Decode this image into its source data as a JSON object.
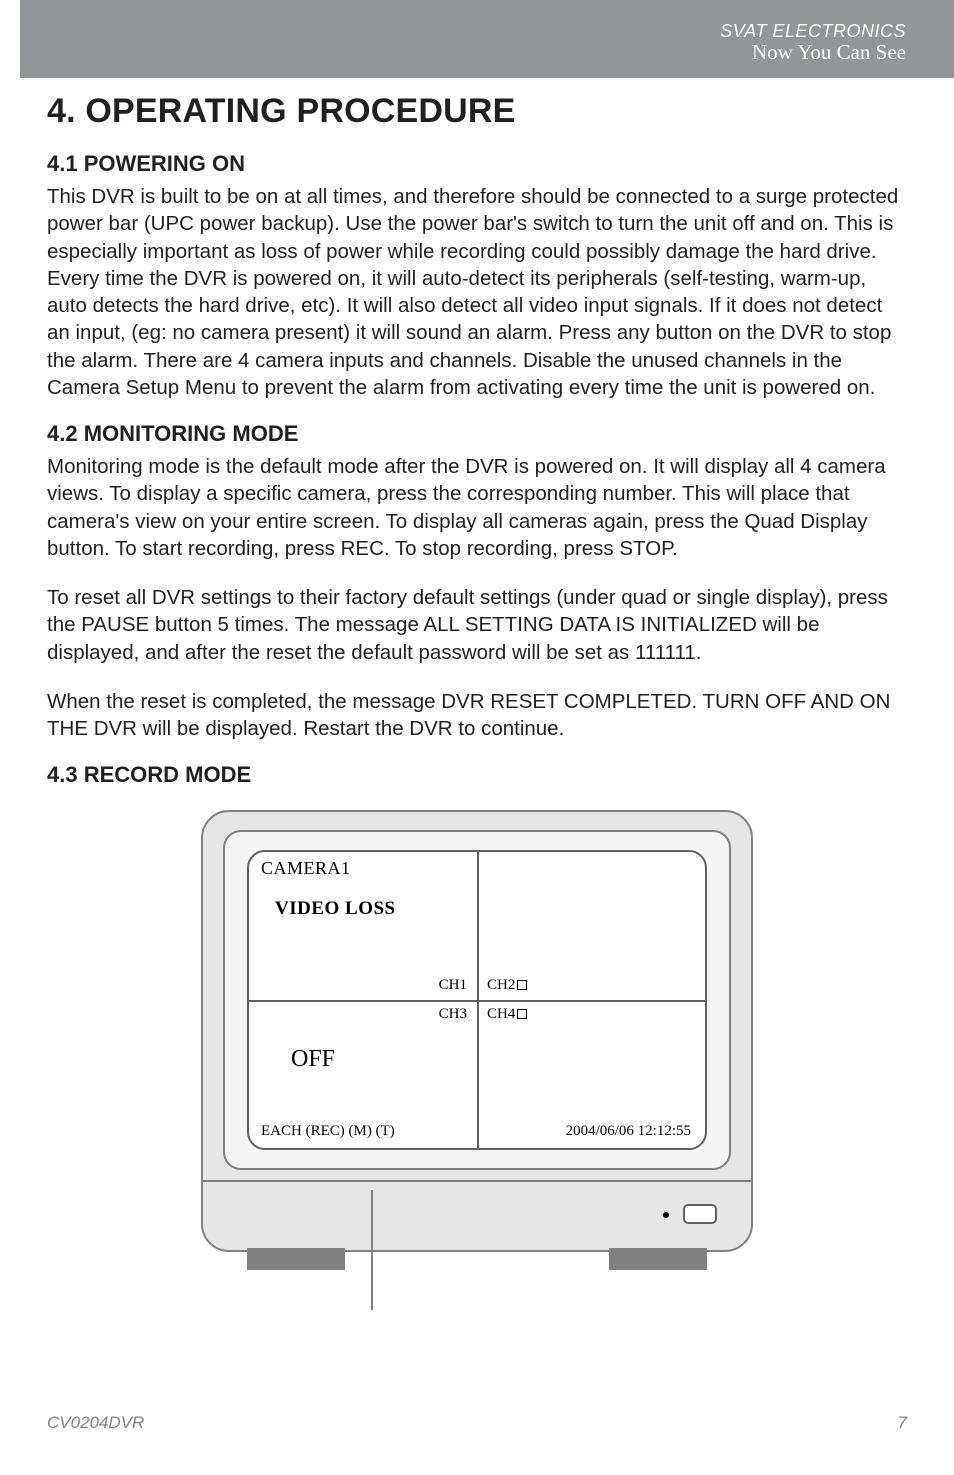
{
  "header": {
    "brand": "SVAT ELECTRONICS",
    "tagline": "Now You Can See"
  },
  "chapter_title": "4. OPERATING PROCEDURE",
  "sections": {
    "s41": {
      "heading": "4.1 POWERING ON",
      "body": "This DVR is built to be on at all times, and therefore should be connected to a surge protected power bar (UPC power backup). Use the power bar's switch to turn the unit off and on. This is especially important as loss of power while recording could possibly damage the hard drive. Every time the DVR is powered on, it will auto-detect its peripherals (self-testing, warm-up, auto detects the hard drive, etc). It will also detect all video input signals. If it does not detect an input, (eg: no camera present) it will sound an alarm. Press any button on the DVR to stop the alarm. There are 4 camera inputs and channels. Disable the unused channels in the Camera Setup Menu to prevent the alarm from activating every time the unit is powered on."
    },
    "s42": {
      "heading": "4.2 MONITORING MODE",
      "body1": "Monitoring mode is the default mode after the DVR is powered on. It will display all 4 camera views. To display a specific camera, press the corresponding number. This will place that camera's view on your entire screen. To display all cameras again, press the Quad Display button. To start recording, press REC. To stop recording, press STOP.",
      "body2": "To reset all DVR settings to their factory default settings (under quad or single display), press the PAUSE  button 5 times. The message ALL SETTING DATA IS INITIALIZED will be displayed, and after the reset the default password will be set as 111111.",
      "body3": "When the reset is completed, the message DVR RESET COMPLETED. TURN OFF AND ON THE DVR will be displayed. Restart the DVR to continue."
    },
    "s43": {
      "heading": "4.3 RECORD MODE"
    }
  },
  "monitor": {
    "camera_title": "CAMERA1",
    "video_loss": "VIDEO LOSS",
    "ch1": "CH1",
    "ch2": "CH2",
    "ch3": "CH3",
    "ch4": "CH4",
    "off": "OFF",
    "each": "EACH  (REC)  (M) (T)",
    "timestamp": "2004/06/06 12:12:55",
    "colors": {
      "bezel_bg": "#e6e6e6",
      "border": "#808080",
      "screen_border": "#606060"
    }
  },
  "footer": {
    "model": "CV0204DVR",
    "page": "7"
  }
}
